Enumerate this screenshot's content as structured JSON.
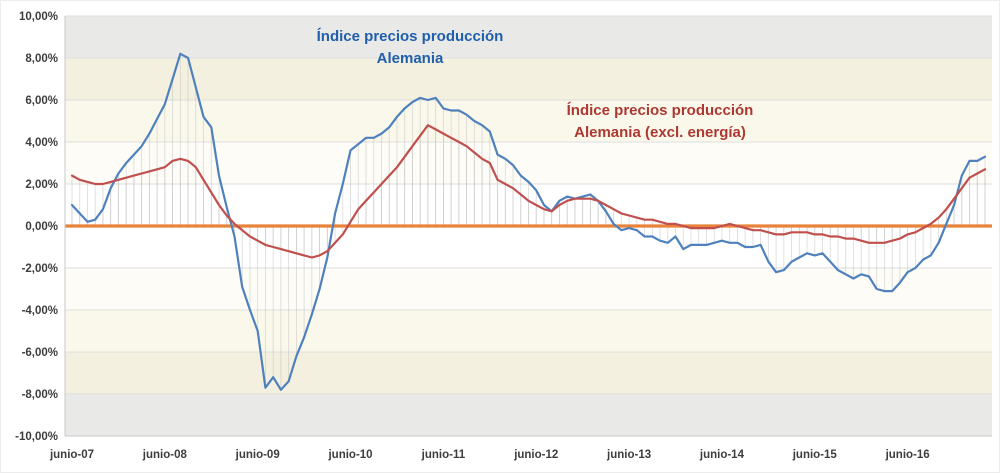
{
  "chart_data": {
    "type": "line",
    "x_start": "junio-07",
    "x_ticks": [
      {
        "label": "junio-07",
        "month_index": 0
      },
      {
        "label": "junio-08",
        "month_index": 12
      },
      {
        "label": "junio-09",
        "month_index": 24
      },
      {
        "label": "junio-10",
        "month_index": 36
      },
      {
        "label": "junio-11",
        "month_index": 48
      },
      {
        "label": "junio-12",
        "month_index": 60
      },
      {
        "label": "junio-13",
        "month_index": 72
      },
      {
        "label": "junio-14",
        "month_index": 84
      },
      {
        "label": "junio-15",
        "month_index": 96
      },
      {
        "label": "junio-16",
        "month_index": 108
      }
    ],
    "y_ticks": [
      {
        "label": "10,00%",
        "value": 10
      },
      {
        "label": "8,00%",
        "value": 8
      },
      {
        "label": "6,00%",
        "value": 6
      },
      {
        "label": "4,00%",
        "value": 4
      },
      {
        "label": "2,00%",
        "value": 2
      },
      {
        "label": "0,00%",
        "value": 0
      },
      {
        "label": "-2,00%",
        "value": -2
      },
      {
        "label": "-4,00%",
        "value": -4
      },
      {
        "label": "-6,00%",
        "value": -6
      },
      {
        "label": "-8,00%",
        "value": -8
      },
      {
        "label": "-10,00%",
        "value": -10
      }
    ],
    "ylim": [
      -10,
      10
    ],
    "grid": true,
    "drop_lines": true,
    "zero_line_color": "#E8833A",
    "series": [
      {
        "name": "Índice precios producción Alemania",
        "color": "#4F81BD",
        "values": [
          1.0,
          0.6,
          0.2,
          0.3,
          0.8,
          1.8,
          2.5,
          3.0,
          3.4,
          3.8,
          4.4,
          5.1,
          5.8,
          7.0,
          8.2,
          8.0,
          6.6,
          5.2,
          4.7,
          2.4,
          0.9,
          -0.5,
          -2.9,
          -4.0,
          -5.0,
          -7.7,
          -7.2,
          -7.8,
          -7.4,
          -6.2,
          -5.3,
          -4.2,
          -3.0,
          -1.5,
          0.6,
          2.0,
          3.6,
          3.9,
          4.2,
          4.2,
          4.4,
          4.7,
          5.2,
          5.6,
          5.9,
          6.1,
          6.0,
          6.1,
          5.6,
          5.5,
          5.5,
          5.3,
          5.0,
          4.8,
          4.5,
          3.4,
          3.2,
          2.9,
          2.4,
          2.1,
          1.7,
          1.0,
          0.7,
          1.2,
          1.4,
          1.3,
          1.4,
          1.5,
          1.2,
          0.7,
          0.1,
          -0.2,
          -0.1,
          -0.2,
          -0.5,
          -0.5,
          -0.7,
          -0.8,
          -0.5,
          -1.1,
          -0.9,
          -0.9,
          -0.9,
          -0.8,
          -0.7,
          -0.8,
          -0.8,
          -1.0,
          -1.0,
          -0.9,
          -1.7,
          -2.2,
          -2.1,
          -1.7,
          -1.5,
          -1.3,
          -1.4,
          -1.3,
          -1.7,
          -2.1,
          -2.3,
          -2.5,
          -2.3,
          -2.4,
          -3.0,
          -3.1,
          -3.1,
          -2.7,
          -2.2,
          -2.0,
          -1.6,
          -1.4,
          -0.8,
          0.1,
          1.0,
          2.4,
          3.1,
          3.1,
          3.3
        ]
      },
      {
        "name": "Índice precios producción Alemania (excl. energía)",
        "color": "#C0504D",
        "values": [
          2.4,
          2.2,
          2.1,
          2.0,
          2.0,
          2.1,
          2.2,
          2.3,
          2.4,
          2.5,
          2.6,
          2.7,
          2.8,
          3.1,
          3.2,
          3.1,
          2.8,
          2.2,
          1.6,
          1.0,
          0.5,
          0.1,
          -0.2,
          -0.5,
          -0.7,
          -0.9,
          -1.0,
          -1.1,
          -1.2,
          -1.3,
          -1.4,
          -1.5,
          -1.4,
          -1.2,
          -0.8,
          -0.4,
          0.2,
          0.8,
          1.2,
          1.6,
          2.0,
          2.4,
          2.8,
          3.3,
          3.8,
          4.3,
          4.8,
          4.6,
          4.4,
          4.2,
          4.0,
          3.8,
          3.5,
          3.2,
          3.0,
          2.2,
          2.0,
          1.8,
          1.5,
          1.2,
          1.0,
          0.8,
          0.7,
          1.0,
          1.2,
          1.3,
          1.3,
          1.3,
          1.2,
          1.0,
          0.8,
          0.6,
          0.5,
          0.4,
          0.3,
          0.3,
          0.2,
          0.1,
          0.1,
          0.0,
          -0.1,
          -0.1,
          -0.1,
          -0.1,
          0.0,
          0.1,
          0.0,
          -0.1,
          -0.2,
          -0.2,
          -0.3,
          -0.4,
          -0.4,
          -0.3,
          -0.3,
          -0.3,
          -0.4,
          -0.4,
          -0.5,
          -0.5,
          -0.6,
          -0.6,
          -0.7,
          -0.8,
          -0.8,
          -0.8,
          -0.7,
          -0.6,
          -0.4,
          -0.3,
          -0.1,
          0.1,
          0.4,
          0.8,
          1.3,
          1.8,
          2.3,
          2.5,
          2.7
        ]
      }
    ],
    "annotations": [
      {
        "line1": "Índice precios producción",
        "line2": "Alemania",
        "color": "#1F5FAD"
      },
      {
        "line1": "Índice precios producción",
        "line2": "Alemania (excl. energía)",
        "color": "#AD3832"
      }
    ]
  }
}
